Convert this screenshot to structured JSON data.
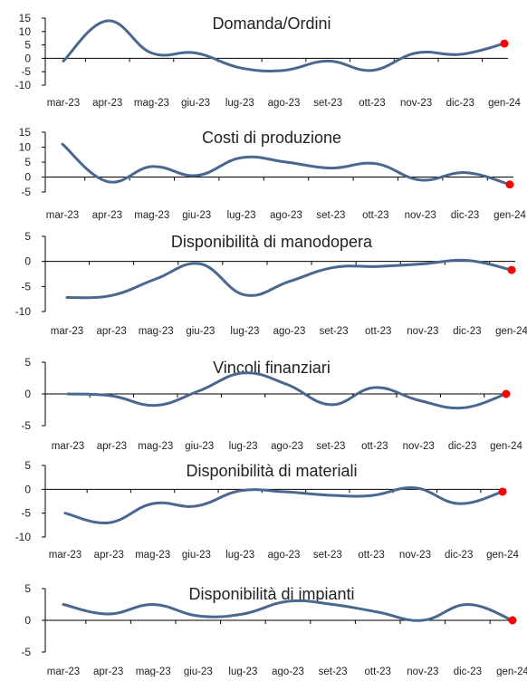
{
  "colors": {
    "line": "#4a6790",
    "marker": "#ff0000",
    "axis": "#000000",
    "text": "#222222"
  },
  "chart_data": [
    {
      "type": "line",
      "title": "Domanda/Ordini",
      "categories": [
        "mar-23",
        "apr-23",
        "mag-23",
        "giu-23",
        "lug-23",
        "ago-23",
        "set-23",
        "ott-23",
        "nov-23",
        "dic-23",
        "gen-24"
      ],
      "values": [
        -1,
        14,
        2,
        2,
        -3.5,
        -4.5,
        -1,
        -4.5,
        2,
        1.5,
        5.5
      ],
      "ylim": [
        -10,
        15
      ],
      "yticks": [
        "15",
        "10",
        "5",
        "0",
        "-5",
        "-10"
      ],
      "xlabel": "",
      "ylabel": "",
      "grid": false,
      "last_point_marker": true
    },
    {
      "type": "line",
      "title": "Costi di produzione",
      "categories": [
        "mar-23",
        "apr-23",
        "mag-23",
        "giu-23",
        "lug-23",
        "ago-23",
        "set-23",
        "ott-23",
        "nov-23",
        "dic-23",
        "gen-24"
      ],
      "values": [
        11,
        -1.5,
        3.5,
        0.5,
        6.5,
        5,
        3,
        4.5,
        -1,
        1.5,
        -2.5
      ],
      "ylim": [
        -5,
        15
      ],
      "yticks": [
        "15",
        "10",
        "5",
        "0",
        "-5"
      ],
      "xlabel": "",
      "ylabel": "",
      "grid": false,
      "last_point_marker": true
    },
    {
      "type": "line",
      "title": "Disponibilità di manodopera",
      "categories": [
        "mar-23",
        "apr-23",
        "mag-23",
        "giu-23",
        "lug-23",
        "ago-23",
        "set-23",
        "ott-23",
        "nov-23",
        "dic-23",
        "gen-24"
      ],
      "values": [
        -7.2,
        -6.8,
        -3.5,
        -0.5,
        -6.7,
        -4,
        -1.2,
        -1,
        -0.5,
        0.2,
        -1.7
      ],
      "ylim": [
        -10,
        5
      ],
      "yticks": [
        "5",
        "0",
        "-5",
        "-10"
      ],
      "xlabel": "",
      "ylabel": "",
      "grid": false,
      "last_point_marker": true
    },
    {
      "type": "line",
      "title": "Vincoli finanziari",
      "categories": [
        "mar-23",
        "apr-23",
        "mag-23",
        "giu-23",
        "lug-23",
        "ago-23",
        "set-23",
        "ott-23",
        "nov-23",
        "dic-23",
        "gen-24"
      ],
      "values": [
        0,
        -0.3,
        -1.8,
        0.5,
        3.3,
        1.5,
        -1.7,
        1,
        -1,
        -2.2,
        0
      ],
      "ylim": [
        -5,
        5
      ],
      "yticks": [
        "5",
        "0",
        "-5"
      ],
      "xlabel": "",
      "ylabel": "",
      "grid": false,
      "last_point_marker": true
    },
    {
      "type": "line",
      "title": "Disponibilità di materiali",
      "categories": [
        "mar-23",
        "apr-23",
        "mag-23",
        "giu-23",
        "lug-23",
        "ago-23",
        "set-23",
        "ott-23",
        "nov-23",
        "dic-23",
        "gen-24"
      ],
      "values": [
        -5,
        -7,
        -3,
        -3.5,
        -0.3,
        -0.5,
        -1.2,
        -1.3,
        0.3,
        -3,
        -0.5
      ],
      "ylim": [
        -10,
        5
      ],
      "yticks": [
        "5",
        "0",
        "-5",
        "-10"
      ],
      "xlabel": "",
      "ylabel": "",
      "grid": false,
      "last_point_marker": true
    },
    {
      "type": "line",
      "title": "Disponibilità di impianti",
      "categories": [
        "mar-23",
        "apr-23",
        "mag-23",
        "giu-23",
        "lug-23",
        "ago-23",
        "set-23",
        "ott-23",
        "nov-23",
        "dic-23",
        "gen-24"
      ],
      "values": [
        2.5,
        1,
        2.5,
        0.7,
        1,
        3,
        2.5,
        1.3,
        0,
        2.5,
        0
      ],
      "ylim": [
        -5,
        5
      ],
      "yticks": [
        "5",
        "0",
        "-5"
      ],
      "xlabel": "",
      "ylabel": "",
      "grid": false,
      "last_point_marker": true
    }
  ]
}
